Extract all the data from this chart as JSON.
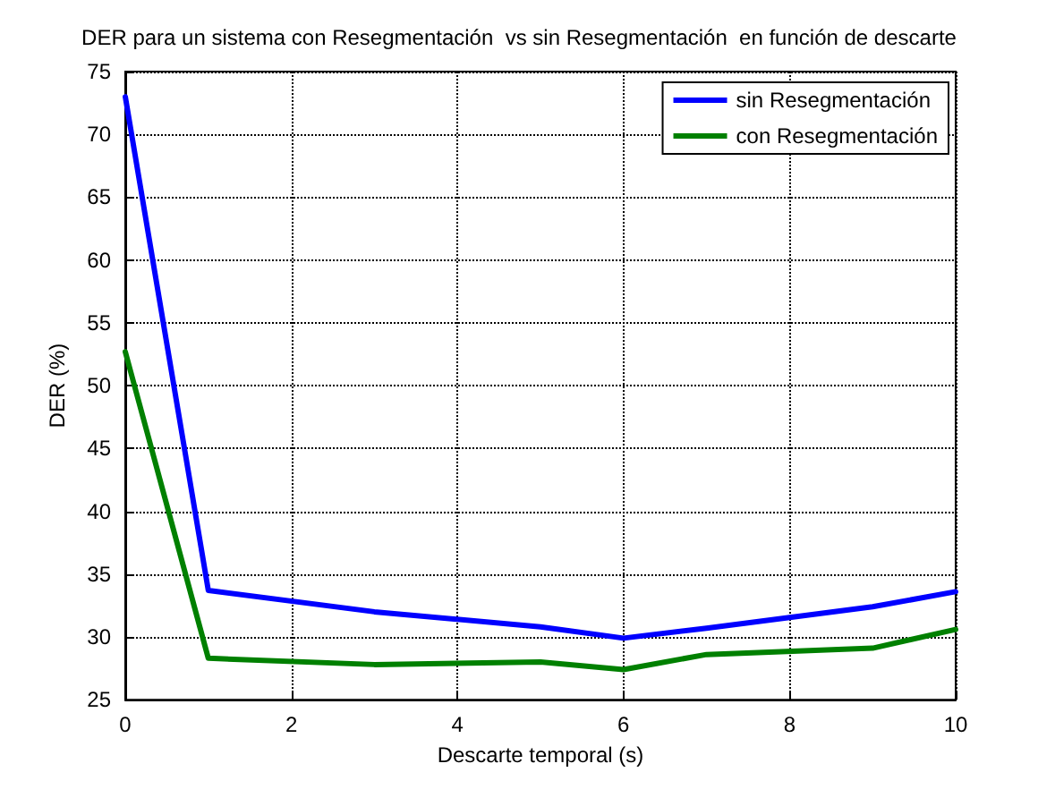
{
  "chart_data": {
    "type": "line",
    "title": "DER para un sistema con Resegmentación  vs sin Resegmentación  en función de descarte",
    "xlabel": "Descarte temporal (s)",
    "ylabel": "DER (%)",
    "x": [
      0,
      1,
      3,
      5,
      6,
      7,
      9,
      10
    ],
    "series": [
      {
        "name": "sin Resegmentación",
        "color": "#0000ff",
        "values": [
          73,
          33.7,
          32.0,
          30.8,
          29.9,
          30.7,
          32.4,
          33.6
        ]
      },
      {
        "name": "con Resegmentación",
        "color": "#008000",
        "values": [
          52.7,
          28.3,
          27.8,
          28.0,
          27.4,
          28.6,
          29.1,
          30.6
        ]
      }
    ],
    "xlim": [
      0,
      10
    ],
    "xticks": [
      0,
      2,
      4,
      6,
      8,
      10
    ],
    "ylim": [
      25,
      75
    ],
    "yticks": [
      25,
      30,
      35,
      40,
      45,
      50,
      55,
      60,
      65,
      70,
      75
    ],
    "grid": true,
    "legend": "top right",
    "marker": "none",
    "line_style": "solid"
  }
}
